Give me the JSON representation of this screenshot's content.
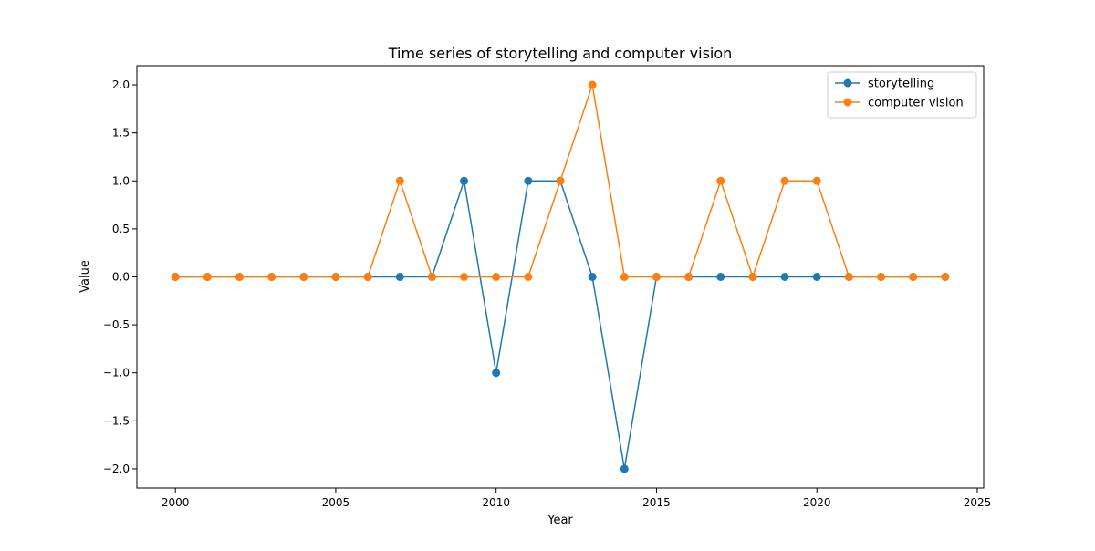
{
  "chart_data": {
    "type": "line",
    "title": "Time series of storytelling and computer vision",
    "xlabel": "Year",
    "ylabel": "Value",
    "x": [
      2000,
      2001,
      2002,
      2003,
      2004,
      2005,
      2006,
      2007,
      2008,
      2009,
      2010,
      2011,
      2012,
      2013,
      2014,
      2015,
      2016,
      2017,
      2018,
      2019,
      2020,
      2021,
      2022,
      2023,
      2024
    ],
    "xlim": [
      1998.8,
      2025.2
    ],
    "ylim": [
      -2.2,
      2.2
    ],
    "x_ticks": [
      2000,
      2005,
      2010,
      2015,
      2020,
      2025
    ],
    "x_tick_labels": [
      "2000",
      "2005",
      "2010",
      "2015",
      "2020",
      "2025"
    ],
    "y_ticks": [
      -2.0,
      -1.5,
      -1.0,
      -0.5,
      0.0,
      0.5,
      1.0,
      1.5,
      2.0
    ],
    "y_tick_labels": [
      "−2.0",
      "−1.5",
      "−1.0",
      "−0.5",
      "0.0",
      "0.5",
      "1.0",
      "1.5",
      "2.0"
    ],
    "grid": false,
    "legend_position": "top-right",
    "series": [
      {
        "name": "storytelling",
        "color": "#1f77b4",
        "values": [
          0,
          0,
          0,
          0,
          0,
          0,
          0,
          0,
          0,
          1,
          -1,
          1,
          1,
          0,
          -2,
          0,
          0,
          0,
          0,
          0,
          0,
          0,
          0,
          0,
          0
        ]
      },
      {
        "name": "computer vision",
        "color": "#ff7f0e",
        "values": [
          0,
          0,
          0,
          0,
          0,
          0,
          0,
          1,
          0,
          0,
          0,
          0,
          1,
          2,
          0,
          0,
          0,
          1,
          0,
          1,
          1,
          0,
          0,
          0,
          0
        ]
      }
    ]
  }
}
